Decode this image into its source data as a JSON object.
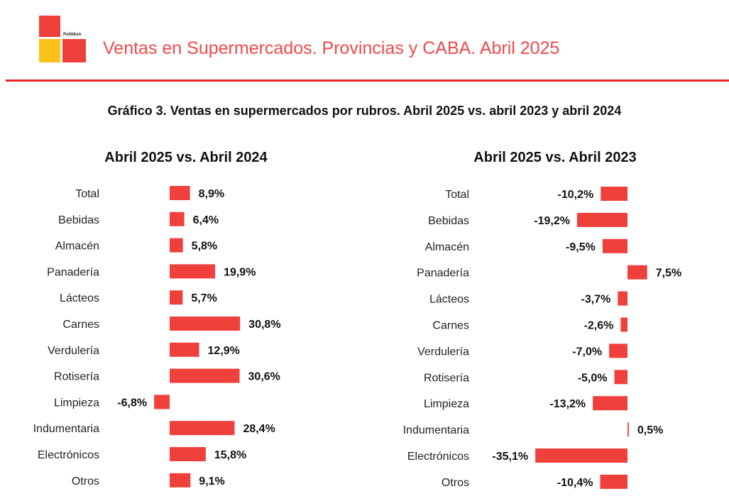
{
  "header": {
    "brand": "Politikon",
    "title": "Ventas en Supermercados. Provincias y CABA. Abril 2025"
  },
  "figure_title": "Gráfico 3. Ventas en supermercados por rubros. Abril 2025 vs. abril 2023 y abril 2024",
  "colors": {
    "bar": "#f0403c",
    "rule": "#e8262a",
    "title": "#f04a4a",
    "logo_yellow": "#fcc21b"
  },
  "chart_data": [
    {
      "type": "bar",
      "orientation": "horizontal",
      "title": "Abril 2025 vs. Abril 2024",
      "categories": [
        "Total",
        "Bebidas",
        "Almacén",
        "Panadería",
        "Lácteos",
        "Carnes",
        "Verdulería",
        "Rotisería",
        "Limpieza",
        "Indumentaria",
        "Electrónicos",
        "Otros"
      ],
      "values": [
        8.9,
        6.4,
        5.8,
        19.9,
        5.7,
        30.8,
        12.9,
        30.6,
        -6.8,
        28.4,
        15.8,
        9.1
      ],
      "value_labels": [
        "8,9%",
        "6,4%",
        "5,8%",
        "19,9%",
        "5,7%",
        "30,8%",
        "12,9%",
        "30,6%",
        "-6,8%",
        "28,4%",
        "15,8%",
        "9,1%"
      ],
      "grid": false,
      "axes_visible": false
    },
    {
      "type": "bar",
      "orientation": "horizontal",
      "title": "Abril 2025 vs. Abril 2023",
      "categories": [
        "Total",
        "Bebidas",
        "Almacén",
        "Panadería",
        "Lácteos",
        "Carnes",
        "Verdulería",
        "Rotisería",
        "Limpieza",
        "Indumentaria",
        "Electrónicos",
        "Otros"
      ],
      "values": [
        -10.2,
        -19.2,
        -9.5,
        7.5,
        -3.7,
        -2.6,
        -7.0,
        -5.0,
        -13.2,
        0.5,
        -35.1,
        -10.4
      ],
      "value_labels": [
        "-10,2%",
        "-19,2%",
        "-9,5%",
        "7,5%",
        "-3,7%",
        "-2,6%",
        "-7,0%",
        "-5,0%",
        "-13,2%",
        "0,5%",
        "-35,1%",
        "-10,4%"
      ],
      "grid": false,
      "axes_visible": false
    }
  ]
}
